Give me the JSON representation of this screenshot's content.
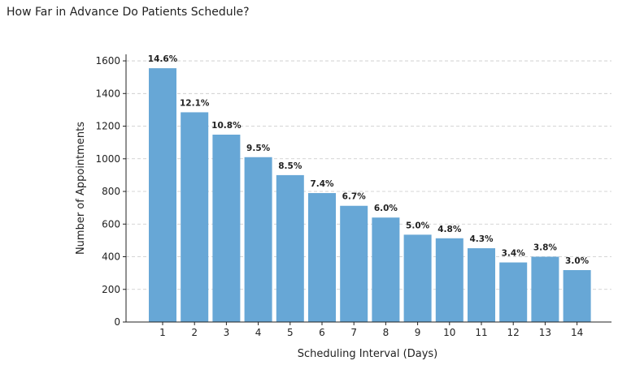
{
  "chart_data": {
    "type": "bar",
    "title": "How Far in Advance Do Patients Schedule?",
    "xlabel": "Scheduling Interval (Days)",
    "ylabel": "Number of Appointments",
    "categories": [
      "1",
      "2",
      "3",
      "4",
      "5",
      "6",
      "7",
      "8",
      "9",
      "10",
      "11",
      "12",
      "13",
      "14"
    ],
    "values": [
      1555,
      1285,
      1148,
      1010,
      900,
      790,
      712,
      640,
      535,
      513,
      452,
      365,
      400,
      318
    ],
    "data_labels": [
      "14.6%",
      "12.1%",
      "10.8%",
      "9.5%",
      "8.5%",
      "7.4%",
      "6.7%",
      "6.0%",
      "5.0%",
      "4.8%",
      "4.3%",
      "3.4%",
      "3.8%",
      "3.0%"
    ],
    "ylim": [
      0,
      1640
    ],
    "yticks": [
      0,
      200,
      400,
      600,
      800,
      1000,
      1200,
      1400,
      1600
    ],
    "grid": "y-dashed",
    "bar_color": "#67a7d6"
  }
}
